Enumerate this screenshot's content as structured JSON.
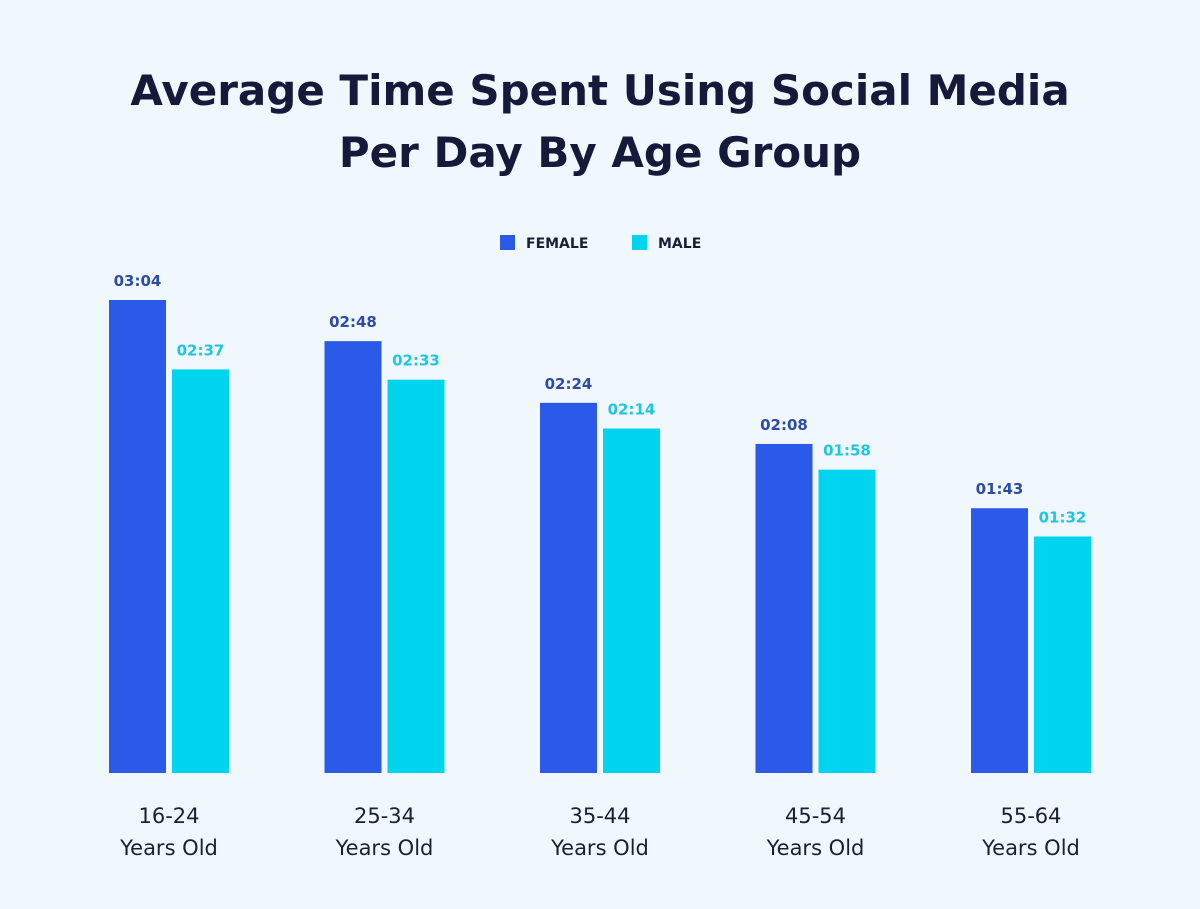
{
  "chart_data": {
    "type": "bar",
    "title": [
      "Average Time Spent Using Social Media",
      "Per Day By Age Group"
    ],
    "categories": [
      [
        "16-24",
        "Years Old"
      ],
      [
        "25-34",
        "Years Old"
      ],
      [
        "35-44",
        "Years Old"
      ],
      [
        "45-54",
        "Years Old"
      ],
      [
        "55-64",
        "Years Old"
      ]
    ],
    "series": [
      {
        "name": "FEMALE",
        "color": "#2b59e8",
        "label_color": "#2c4ca6",
        "values": [
          184,
          168,
          144,
          128,
          103
        ],
        "labels": [
          "03:04",
          "02:48",
          "02:24",
          "02:08",
          "01:43"
        ]
      },
      {
        "name": "MALE",
        "color": "#00d4ee",
        "label_color": "#1ec6e0",
        "values": [
          157,
          153,
          134,
          118,
          92
        ],
        "labels": [
          "02:37",
          "02:33",
          "02:14",
          "01:58",
          "01:32"
        ]
      }
    ],
    "value_unit": "minutes (shown as hh:mm)",
    "ylim": [
      0,
      184
    ],
    "grid": false,
    "legend": "top-center"
  },
  "background": "#f0f7fd"
}
